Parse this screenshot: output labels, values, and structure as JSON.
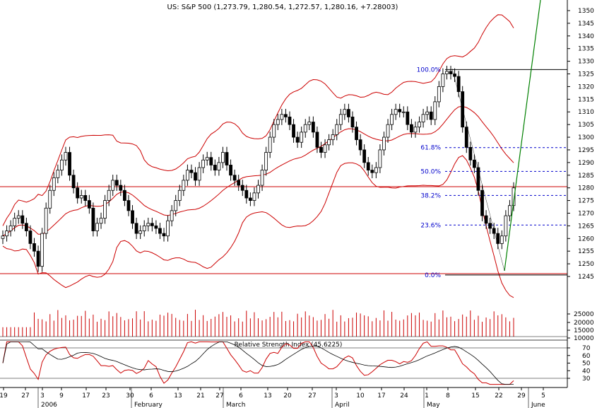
{
  "title": "US: S&P 500 (1,273.79, 1,280.54, 1,272.57, 1,280.16, +7.28003)",
  "rsi_label": "Relative Strength Index (45.6225)",
  "price_axis": {
    "min": 1240,
    "max": 1355,
    "ticks": [
      1245,
      1250,
      1255,
      1260,
      1265,
      1270,
      1275,
      1280,
      1285,
      1290,
      1295,
      1300,
      1305,
      1310,
      1315,
      1320,
      1325,
      1330,
      1335,
      1340,
      1345,
      1350
    ]
  },
  "volume_axis": {
    "ticks": [
      "25000",
      "20000",
      "15000",
      "10000"
    ]
  },
  "rsi_axis": {
    "min": 20,
    "max": 80,
    "ticks": [
      30,
      40,
      50,
      60,
      70
    ]
  },
  "x_labels": [
    "19",
    "27",
    "3",
    "9",
    "17",
    "23",
    "30",
    "6",
    "13",
    "21",
    "27",
    "6",
    "13",
    "20",
    "27",
    "3",
    "10",
    "17",
    "24",
    "1",
    "8",
    "15",
    "22",
    "29",
    "5"
  ],
  "month_labels": [
    "2006",
    "February",
    "March",
    "April",
    "May",
    "June"
  ],
  "fib_levels": [
    {
      "label": "100.0%",
      "price": 1326.7
    },
    {
      "label": "61.8%",
      "price": 1295.9
    },
    {
      "label": "50.0%",
      "price": 1286.5
    },
    {
      "label": "38.2%",
      "price": 1277.0
    },
    {
      "label": "23.6%",
      "price": 1265.3
    },
    {
      "label": "0.0%",
      "price": 1245.6
    }
  ],
  "colors": {
    "up": "#ffffff",
    "down": "#000000",
    "bands": "#cc0000",
    "volume": "#cc0000",
    "fib": "#0000cc",
    "trend": "#008000",
    "support": "#cc0000"
  },
  "chart_data": {
    "type": "candlestick",
    "title": "US: S&P 500 (1,273.79, 1,280.54, 1,272.57, 1,280.16, +7.28003)",
    "close": [
      1261,
      1263,
      1265,
      1268,
      1269,
      1266,
      1263,
      1258,
      1255,
      1249,
      1262,
      1272,
      1279,
      1284,
      1287,
      1291,
      1294,
      1285,
      1280,
      1276,
      1277,
      1275,
      1272,
      1263,
      1266,
      1268,
      1275,
      1279,
      1283,
      1281,
      1279,
      1275,
      1271,
      1266,
      1262,
      1263,
      1265,
      1266,
      1265,
      1264,
      1262,
      1261,
      1267,
      1271,
      1275,
      1279,
      1283,
      1287,
      1286,
      1283,
      1288,
      1291,
      1292,
      1289,
      1287,
      1290,
      1294,
      1289,
      1285,
      1283,
      1281,
      1279,
      1276,
      1275,
      1278,
      1281,
      1287,
      1294,
      1300,
      1305,
      1307,
      1309,
      1308,
      1305,
      1300,
      1298,
      1302,
      1305,
      1306,
      1302,
      1296,
      1294,
      1297,
      1299,
      1301,
      1305,
      1309,
      1311,
      1308,
      1304,
      1299,
      1295,
      1290,
      1287,
      1286,
      1288,
      1295,
      1300,
      1305,
      1309,
      1311,
      1310,
      1310,
      1305,
      1302,
      1304,
      1306,
      1309,
      1310,
      1307,
      1314,
      1320,
      1325,
      1326,
      1325,
      1324,
      1318,
      1304,
      1296,
      1291,
      1288,
      1279,
      1269,
      1266,
      1264,
      1262,
      1258,
      1261,
      1269,
      1273,
      1280
    ],
    "volume_scale": [
      "25000",
      "20000",
      "15000",
      "10000"
    ],
    "rsi_current": 45.6225,
    "ylim": [
      1240,
      1355
    ],
    "legend": "none",
    "grid": false
  }
}
